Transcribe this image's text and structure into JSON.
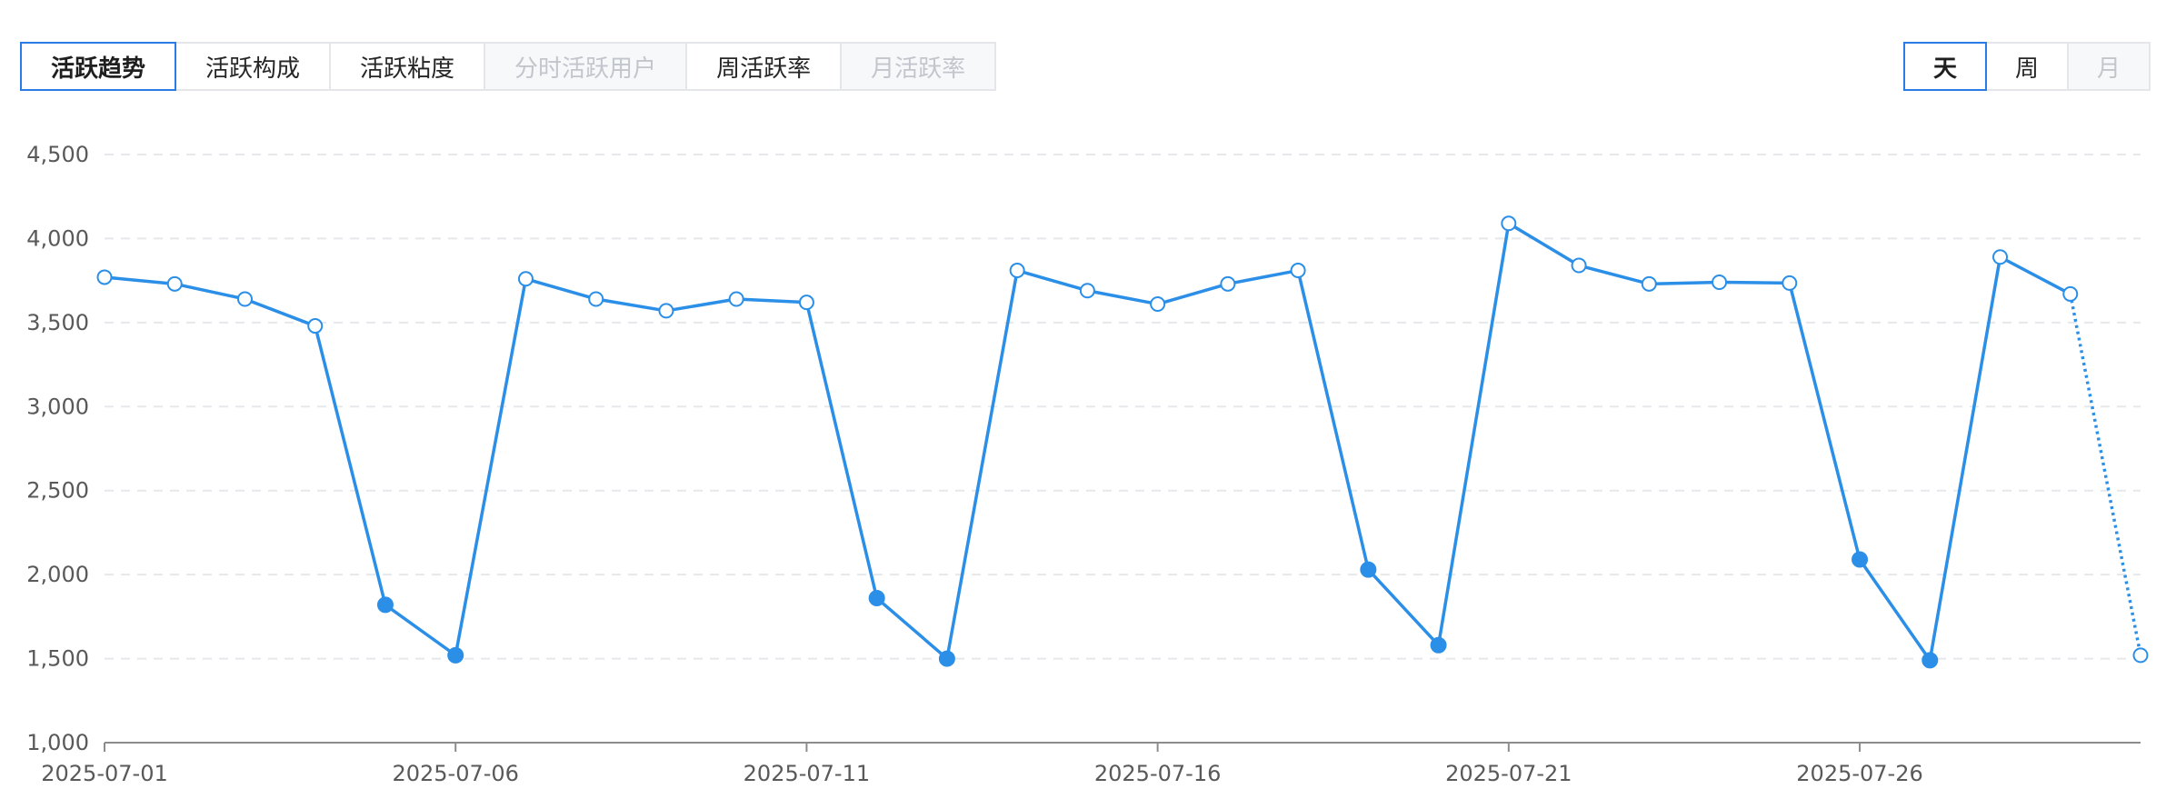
{
  "tabs": [
    {
      "label": "活跃趋势",
      "state": "active"
    },
    {
      "label": "活跃构成",
      "state": "normal"
    },
    {
      "label": "活跃粘度",
      "state": "normal"
    },
    {
      "label": "分时活跃用户",
      "state": "disabled"
    },
    {
      "label": "周活跃率",
      "state": "normal"
    },
    {
      "label": "月活跃率",
      "state": "disabled"
    }
  ],
  "period": [
    {
      "label": "天",
      "state": "active"
    },
    {
      "label": "周",
      "state": "normal"
    },
    {
      "label": "月",
      "state": "disabled"
    }
  ],
  "chart_data": {
    "type": "line",
    "title": "",
    "xlabel": "",
    "ylabel": "",
    "ylim": [
      1000,
      4500
    ],
    "yticks": [
      1000,
      1500,
      2000,
      2500,
      3000,
      3500,
      4000,
      4500
    ],
    "ytick_labels": [
      "1,000",
      "1,500",
      "2,000",
      "2,500",
      "3,000",
      "3,500",
      "4,000",
      "4,500"
    ],
    "x": [
      "2025-07-01",
      "2025-07-02",
      "2025-07-03",
      "2025-07-04",
      "2025-07-05",
      "2025-07-06",
      "2025-07-07",
      "2025-07-08",
      "2025-07-09",
      "2025-07-10",
      "2025-07-11",
      "2025-07-12",
      "2025-07-13",
      "2025-07-14",
      "2025-07-15",
      "2025-07-16",
      "2025-07-17",
      "2025-07-18",
      "2025-07-19",
      "2025-07-20",
      "2025-07-21",
      "2025-07-22",
      "2025-07-23",
      "2025-07-24",
      "2025-07-25",
      "2025-07-26",
      "2025-07-27",
      "2025-07-28",
      "2025-07-29",
      "2025-07-30"
    ],
    "xtick_labels": [
      "2025-07-01",
      "2025-07-06",
      "2025-07-11",
      "2025-07-16",
      "2025-07-21",
      "2025-07-26"
    ],
    "series": [
      {
        "values": [
          3770,
          3730,
          3640,
          3480,
          1820,
          1520,
          3760,
          3640,
          3570,
          3640,
          3620,
          1860,
          1500,
          3810,
          3690,
          3610,
          3730,
          3810,
          2030,
          1580,
          4090,
          3840,
          3730,
          3740,
          3735,
          2090,
          1490,
          3890,
          3670,
          1520
        ],
        "weekend": [
          false,
          false,
          false,
          false,
          true,
          true,
          false,
          false,
          false,
          false,
          false,
          true,
          true,
          false,
          false,
          false,
          false,
          false,
          true,
          true,
          false,
          false,
          false,
          false,
          false,
          true,
          true,
          false,
          false,
          false
        ],
        "dotted_last_segment": true,
        "color": "#2b8fe8"
      }
    ],
    "grid": true,
    "legend": "none"
  }
}
